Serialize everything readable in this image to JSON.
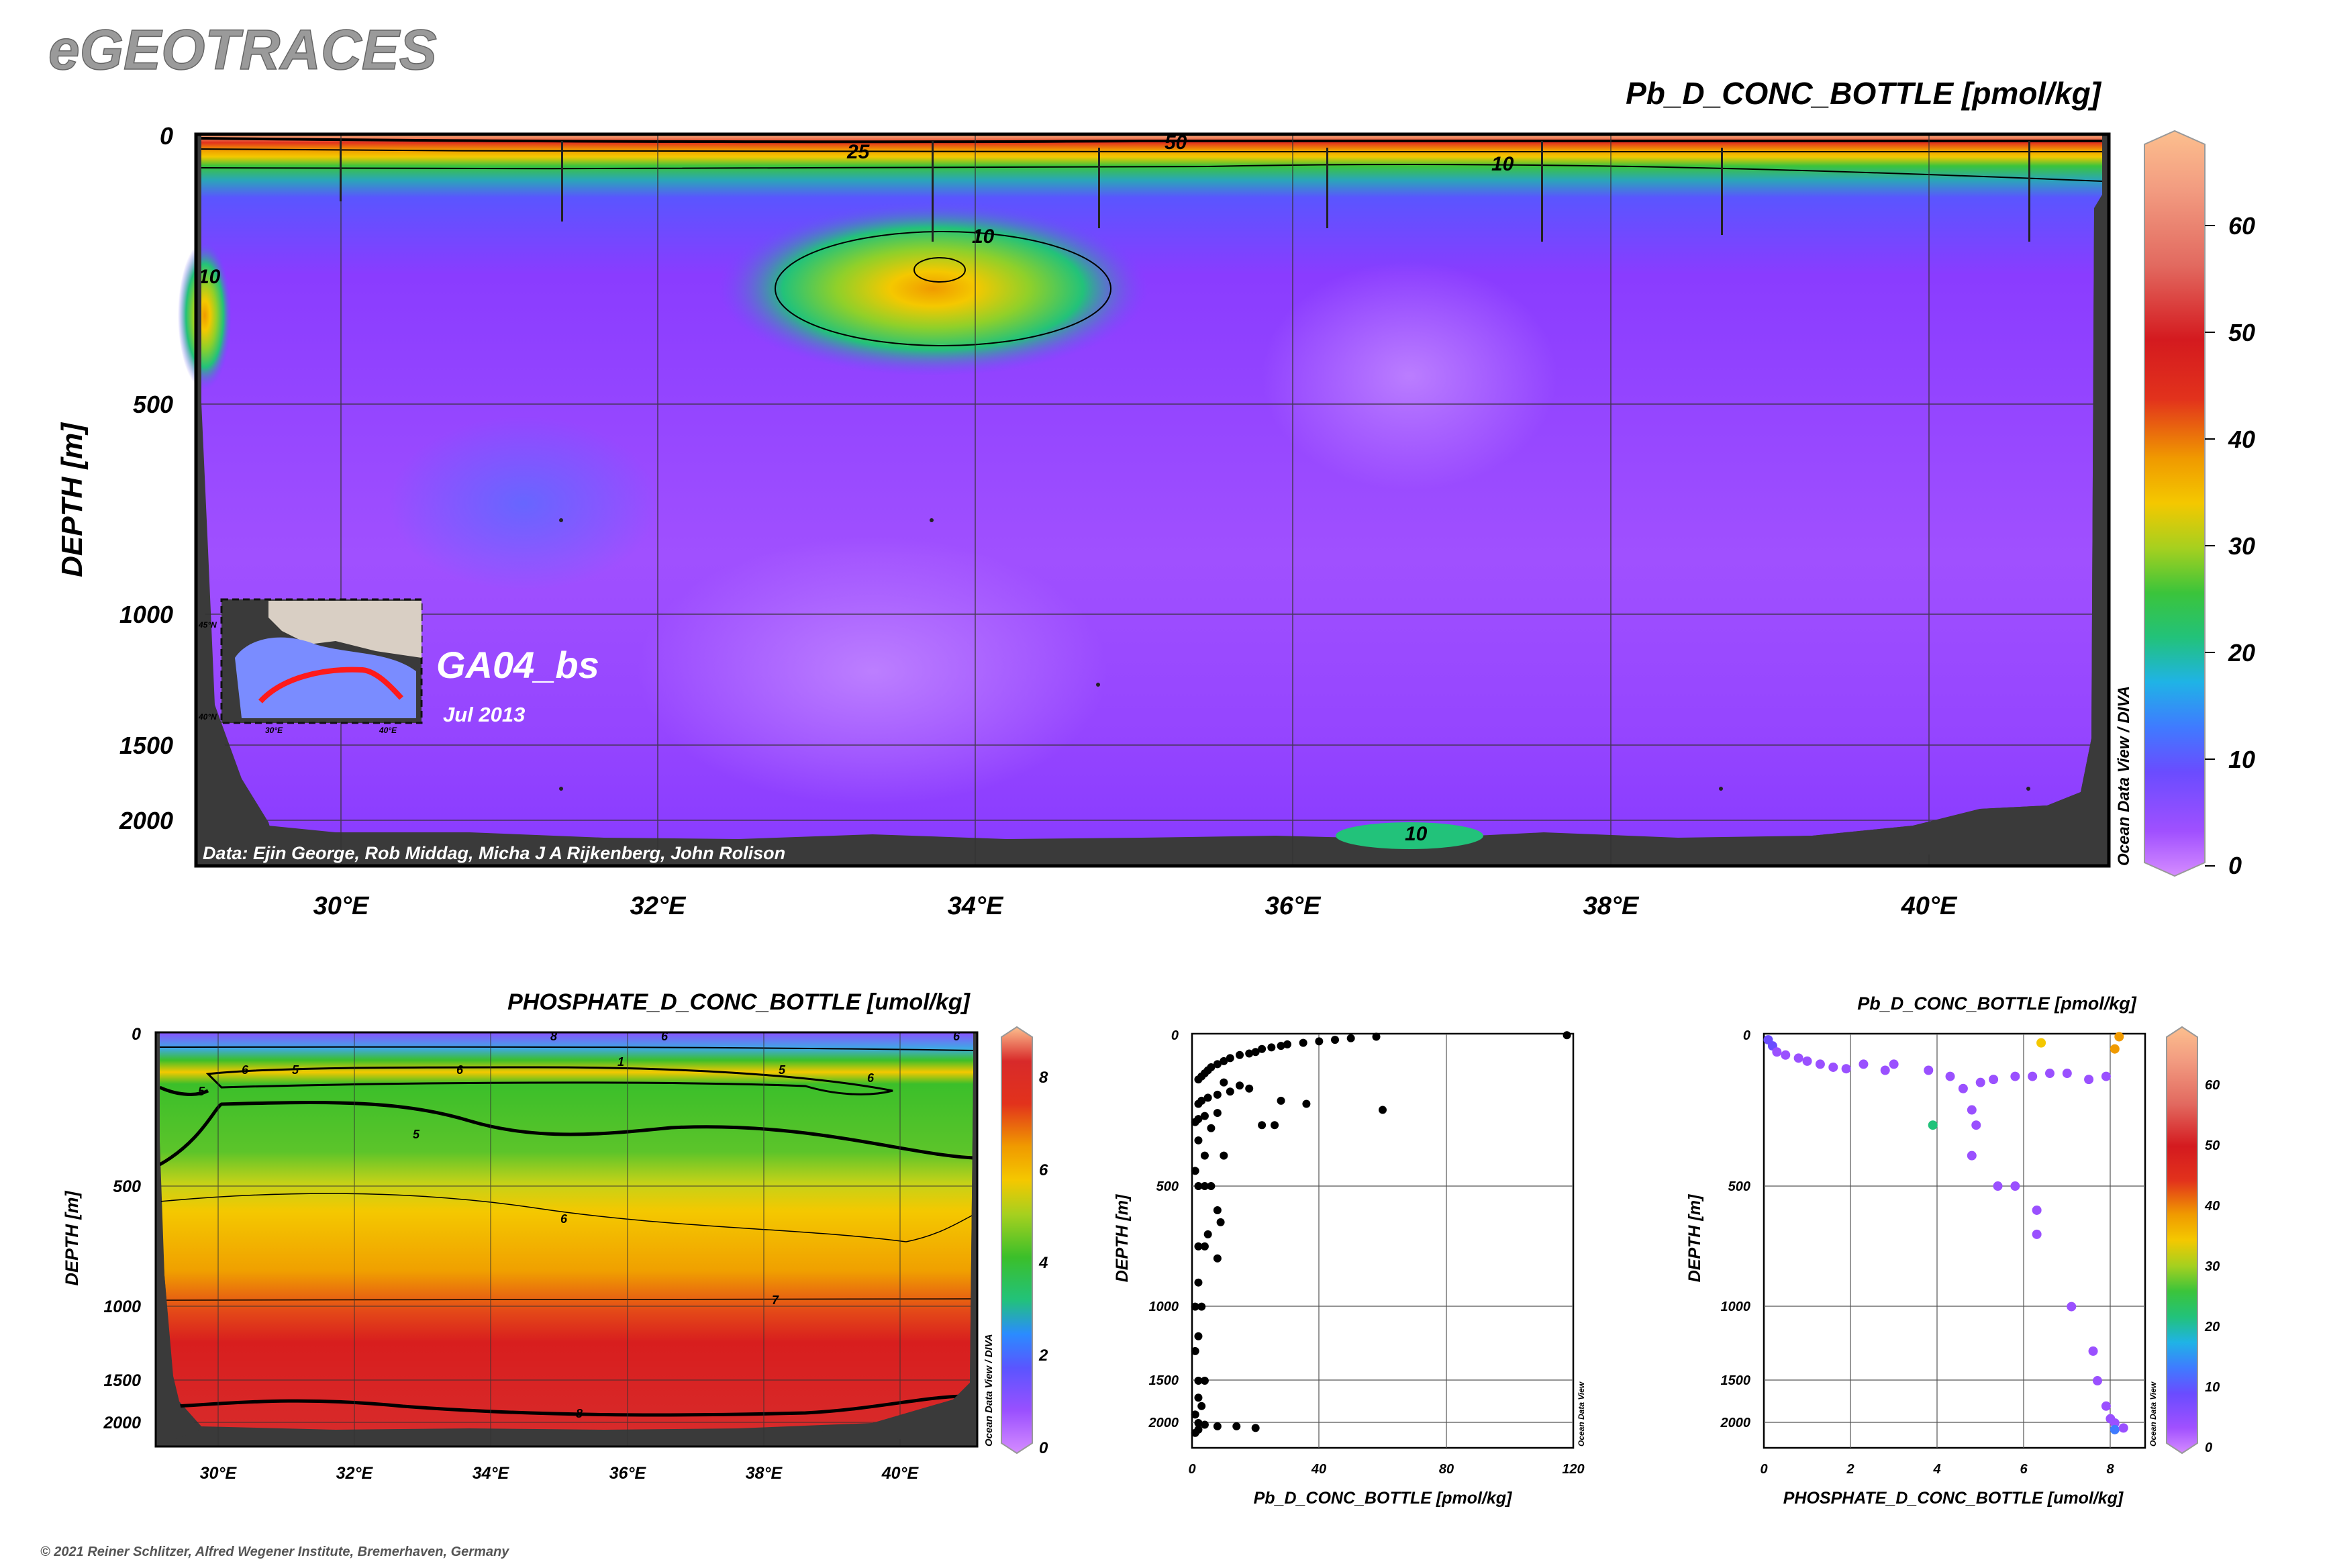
{
  "header": {
    "brand": "eGEOTRACES"
  },
  "main_section": {
    "title": "Pb_D_CONC_BOTTLE [pmol/kg]",
    "y_axis_label": "DEPTH [m]",
    "y_ticks": [
      "0",
      "500",
      "1000",
      "1500",
      "2000"
    ],
    "x_ticks": [
      "30°E",
      "32°E",
      "34°E",
      "36°E",
      "38°E",
      "40°E"
    ],
    "colorbar_ticks": [
      "0",
      "10",
      "20",
      "30",
      "40",
      "50",
      "60"
    ],
    "colorbar_credit": "Ocean Data View / DIVA",
    "contour_labels": [
      "50",
      "25",
      "10",
      "10",
      "10",
      "10"
    ],
    "cruise_name": "GA04_bs",
    "cruise_date": "Jul 2013",
    "data_credit": "Data: Ejin George, Rob Middag, Micha J A Rijkenberg, John Rolison",
    "inset_map": {
      "lon_labels": [
        "30°E",
        "40°E"
      ],
      "lat_labels": [
        "45°N",
        "40°N"
      ]
    }
  },
  "phosphate_section": {
    "title": "PHOSPHATE_D_CONC_BOTTLE [umol/kg]",
    "y_axis_label": "DEPTH [m]",
    "y_ticks": [
      "0",
      "500",
      "1000",
      "1500",
      "2000"
    ],
    "x_ticks": [
      "30°E",
      "32°E",
      "34°E",
      "36°E",
      "38°E",
      "40°E"
    ],
    "colorbar_ticks": [
      "0",
      "2",
      "4",
      "6",
      "8"
    ],
    "colorbar_credit": "Ocean Data View / DIVA",
    "contour_labels": [
      "8",
      "6",
      "6",
      "1",
      "5",
      "6",
      "5",
      "6",
      "6",
      "5",
      "5",
      "6",
      "7",
      "8"
    ]
  },
  "pb_profile": {
    "x_axis_label": "Pb_D_CONC_BOTTLE [pmol/kg]",
    "y_axis_label": "DEPTH [m]",
    "x_ticks": [
      "0",
      "40",
      "80",
      "120"
    ],
    "y_ticks": [
      "0",
      "500",
      "1000",
      "1500",
      "2000"
    ],
    "credit": "Ocean Data View"
  },
  "pb_vs_phosphate": {
    "title": "Pb_D_CONC_BOTTLE [pmol/kg]",
    "x_axis_label": "PHOSPHATE_D_CONC_BOTTLE [umol/kg]",
    "y_axis_label": "DEPTH [m]",
    "x_ticks": [
      "0",
      "2",
      "4",
      "6",
      "8"
    ],
    "y_ticks": [
      "0",
      "500",
      "1000",
      "1500",
      "2000"
    ],
    "colorbar_ticks": [
      "0",
      "10",
      "20",
      "30",
      "40",
      "50",
      "60"
    ],
    "credit": "Ocean Data View"
  },
  "footer": {
    "copyright": "© 2021 Reiner Schlitzer, Alfred Wegener Institute, Bremerhaven, Germany"
  },
  "chart_data": [
    {
      "type": "heatmap",
      "title": "Pb_D_CONC_BOTTLE [pmol/kg]",
      "xlabel": "",
      "ylabel": "DEPTH [m]",
      "xlim": [
        29.1,
        41.1
      ],
      "ylim": [
        2150,
        0
      ],
      "clim": [
        0,
        68
      ],
      "contour_levels": [
        10,
        25,
        50
      ],
      "features": [
        {
          "name": "surface maximum",
          "lon": [
            29.1,
            41.1
          ],
          "depth_m": [
            0,
            40
          ],
          "value": 60
        },
        {
          "name": "subsurface maximum",
          "lon": 33.8,
          "depth_m": 250,
          "value": 26
        },
        {
          "name": "western margin patch",
          "lon": 29.2,
          "depth_m": 300,
          "value": 10
        },
        {
          "name": "near-bottom patch",
          "lon": 36.6,
          "depth_m": 2050,
          "value": 10
        }
      ]
    },
    {
      "type": "heatmap",
      "title": "PHOSPHATE_D_CONC_BOTTLE [umol/kg]",
      "xlabel": "",
      "ylabel": "DEPTH [m]",
      "xlim": [
        29.1,
        41.1
      ],
      "ylim": [
        2150,
        0
      ],
      "clim": [
        0,
        8.8
      ],
      "contour_levels": [
        1,
        5,
        6,
        7,
        8
      ]
    },
    {
      "type": "scatter",
      "xlabel": "Pb_D_CONC_BOTTLE [pmol/kg]",
      "ylabel": "DEPTH [m]",
      "xlim": [
        0,
        120
      ],
      "ylim": [
        2150,
        0
      ],
      "points": [
        [
          118,
          5
        ],
        [
          58,
          10
        ],
        [
          50,
          15
        ],
        [
          45,
          20
        ],
        [
          40,
          25
        ],
        [
          35,
          30
        ],
        [
          30,
          35
        ],
        [
          28,
          40
        ],
        [
          25,
          45
        ],
        [
          22,
          50
        ],
        [
          20,
          60
        ],
        [
          18,
          65
        ],
        [
          15,
          70
        ],
        [
          12,
          80
        ],
        [
          10,
          90
        ],
        [
          8,
          100
        ],
        [
          6,
          110
        ],
        [
          5,
          120
        ],
        [
          4,
          130
        ],
        [
          3,
          140
        ],
        [
          2,
          150
        ],
        [
          10,
          160
        ],
        [
          15,
          170
        ],
        [
          18,
          180
        ],
        [
          12,
          190
        ],
        [
          8,
          200
        ],
        [
          5,
          210
        ],
        [
          3,
          220
        ],
        [
          2,
          230
        ],
        [
          28,
          220
        ],
        [
          36,
          230
        ],
        [
          60,
          250
        ],
        [
          8,
          260
        ],
        [
          4,
          270
        ],
        [
          2,
          280
        ],
        [
          1,
          290
        ],
        [
          22,
          300
        ],
        [
          26,
          300
        ],
        [
          6,
          310
        ],
        [
          2,
          350
        ],
        [
          4,
          400
        ],
        [
          10,
          400
        ],
        [
          1,
          450
        ],
        [
          2,
          500
        ],
        [
          4,
          500
        ],
        [
          6,
          500
        ],
        [
          8,
          600
        ],
        [
          9,
          650
        ],
        [
          5,
          700
        ],
        [
          2,
          750
        ],
        [
          4,
          750
        ],
        [
          8,
          800
        ],
        [
          2,
          900
        ],
        [
          1,
          1000
        ],
        [
          3,
          1000
        ],
        [
          2,
          1200
        ],
        [
          1,
          1300
        ],
        [
          2,
          1500
        ],
        [
          4,
          1500
        ],
        [
          2,
          1700
        ],
        [
          3,
          1800
        ],
        [
          1,
          1900
        ],
        [
          2,
          2000
        ],
        [
          4,
          2010
        ],
        [
          8,
          2020
        ],
        [
          14,
          2020
        ],
        [
          20,
          2030
        ],
        [
          2,
          2040
        ],
        [
          1,
          2060
        ]
      ]
    },
    {
      "type": "scatter",
      "xlabel": "PHOSPHATE_D_CONC_BOTTLE [umol/kg]",
      "ylabel": "DEPTH [m]",
      "color_variable": "Pb_D_CONC_BOTTLE [pmol/kg]",
      "xlim": [
        0,
        8.8
      ],
      "ylim": [
        2150,
        0
      ],
      "clim": [
        0,
        68
      ],
      "points": [
        {
          "x": 0.1,
          "y": 20,
          "v": 10
        },
        {
          "x": 0.2,
          "y": 40,
          "v": 8
        },
        {
          "x": 0.3,
          "y": 60,
          "v": 6
        },
        {
          "x": 0.5,
          "y": 70,
          "v": 5
        },
        {
          "x": 0.8,
          "y": 80,
          "v": 4
        },
        {
          "x": 1.0,
          "y": 90,
          "v": 4
        },
        {
          "x": 1.3,
          "y": 100,
          "v": 4
        },
        {
          "x": 1.6,
          "y": 110,
          "v": 4
        },
        {
          "x": 1.9,
          "y": 115,
          "v": 4
        },
        {
          "x": 2.3,
          "y": 100,
          "v": 4
        },
        {
          "x": 2.8,
          "y": 120,
          "v": 4
        },
        {
          "x": 3.0,
          "y": 100,
          "v": 4
        },
        {
          "x": 3.8,
          "y": 120,
          "v": 4
        },
        {
          "x": 4.3,
          "y": 140,
          "v": 4
        },
        {
          "x": 4.6,
          "y": 180,
          "v": 4
        },
        {
          "x": 4.8,
          "y": 250,
          "v": 4
        },
        {
          "x": 5.0,
          "y": 160,
          "v": 4
        },
        {
          "x": 5.3,
          "y": 150,
          "v": 4
        },
        {
          "x": 5.8,
          "y": 140,
          "v": 4
        },
        {
          "x": 6.2,
          "y": 140,
          "v": 4
        },
        {
          "x": 6.6,
          "y": 130,
          "v": 4
        },
        {
          "x": 7.0,
          "y": 130,
          "v": 4
        },
        {
          "x": 7.5,
          "y": 150,
          "v": 4
        },
        {
          "x": 7.9,
          "y": 140,
          "v": 4
        },
        {
          "x": 4.9,
          "y": 300,
          "v": 4
        },
        {
          "x": 4.8,
          "y": 400,
          "v": 4
        },
        {
          "x": 5.4,
          "y": 500,
          "v": 4
        },
        {
          "x": 5.8,
          "y": 500,
          "v": 4
        },
        {
          "x": 6.3,
          "y": 600,
          "v": 4
        },
        {
          "x": 6.3,
          "y": 700,
          "v": 4
        },
        {
          "x": 7.1,
          "y": 1000,
          "v": 4
        },
        {
          "x": 7.6,
          "y": 1300,
          "v": 4
        },
        {
          "x": 7.7,
          "y": 1500,
          "v": 4
        },
        {
          "x": 7.9,
          "y": 1800,
          "v": 4
        },
        {
          "x": 8.0,
          "y": 1950,
          "v": 5
        },
        {
          "x": 8.1,
          "y": 2000,
          "v": 6
        },
        {
          "x": 8.1,
          "y": 2040,
          "v": 12
        },
        {
          "x": 8.3,
          "y": 2030,
          "v": 4
        },
        {
          "x": 3.9,
          "y": 300,
          "v": 22
        },
        {
          "x": 6.4,
          "y": 30,
          "v": 40
        },
        {
          "x": 8.2,
          "y": 10,
          "v": 48
        },
        {
          "x": 8.1,
          "y": 50,
          "v": 45
        }
      ]
    }
  ]
}
